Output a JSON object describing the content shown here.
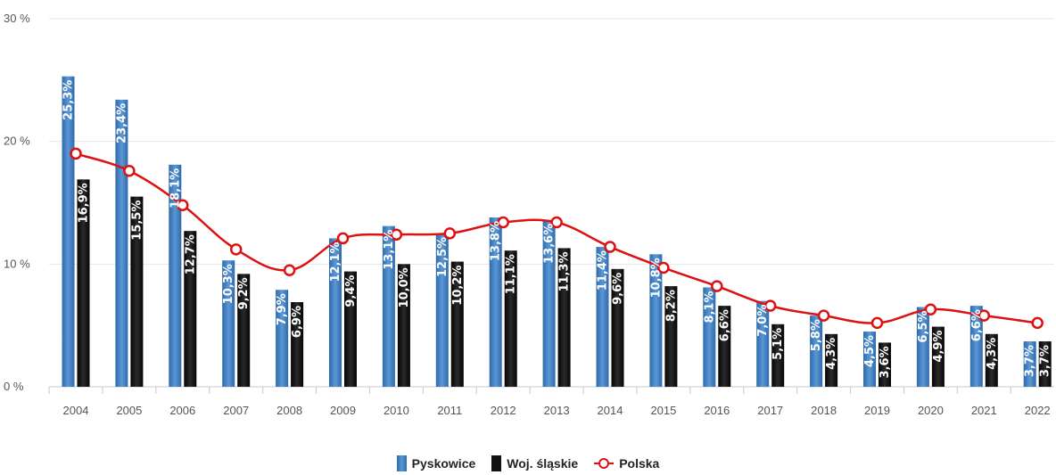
{
  "chart_data": {
    "type": "bar",
    "categories": [
      "2004",
      "2005",
      "2006",
      "2007",
      "2008",
      "2009",
      "2010",
      "2011",
      "2012",
      "2013",
      "2014",
      "2015",
      "2016",
      "2017",
      "2018",
      "2019",
      "2020",
      "2021",
      "2022"
    ],
    "series": [
      {
        "name": "Pyskowice",
        "type": "bar",
        "color": "#3d7cc0",
        "values": [
          25.3,
          23.4,
          18.1,
          10.3,
          7.9,
          12.1,
          13.1,
          12.5,
          13.8,
          13.6,
          11.4,
          10.8,
          8.1,
          7.0,
          5.8,
          4.5,
          6.5,
          6.6,
          3.7
        ],
        "labels": [
          "25,3%",
          "23,4%",
          "18,1%",
          "10,3%",
          "7,9%",
          "12,1%",
          "13,1%",
          "12,5%",
          "13,8%",
          "13,6%",
          "11,4%",
          "10,8%",
          "8,1%",
          "7,0%",
          "5,8%",
          "4,5%",
          "6,5%",
          "6,6%",
          "3,7%"
        ]
      },
      {
        "name": "Woj. śląskie",
        "type": "bar",
        "color": "#111111",
        "values": [
          16.9,
          15.5,
          12.7,
          9.2,
          6.9,
          9.4,
          10.0,
          10.2,
          11.1,
          11.3,
          9.6,
          8.2,
          6.6,
          5.1,
          4.3,
          3.6,
          4.9,
          4.3,
          3.7
        ],
        "labels": [
          "16,9%",
          "15,5%",
          "12,7%",
          "9,2%",
          "6,9%",
          "9,4%",
          "10,0%",
          "10,2%",
          "11,1%",
          "11,3%",
          "9,6%",
          "8,2%",
          "6,6%",
          "5,1%",
          "4,3%",
          "3,6%",
          "4,9%",
          "4,3%",
          "3,7%"
        ]
      },
      {
        "name": "Polska",
        "type": "line",
        "color": "#dd1111",
        "values": [
          19.0,
          17.6,
          14.8,
          11.2,
          9.5,
          12.1,
          12.4,
          12.5,
          13.4,
          13.4,
          11.4,
          9.7,
          8.2,
          6.6,
          5.8,
          5.2,
          6.3,
          5.8,
          5.2
        ]
      }
    ],
    "y_ticks": [
      {
        "value": 0,
        "label": "0 %"
      },
      {
        "value": 10,
        "label": "10 %"
      },
      {
        "value": 20,
        "label": "20 %"
      },
      {
        "value": 30,
        "label": "30 %"
      }
    ],
    "ylim": [
      0,
      30
    ],
    "grid": true,
    "legend_position": "bottom-center"
  }
}
